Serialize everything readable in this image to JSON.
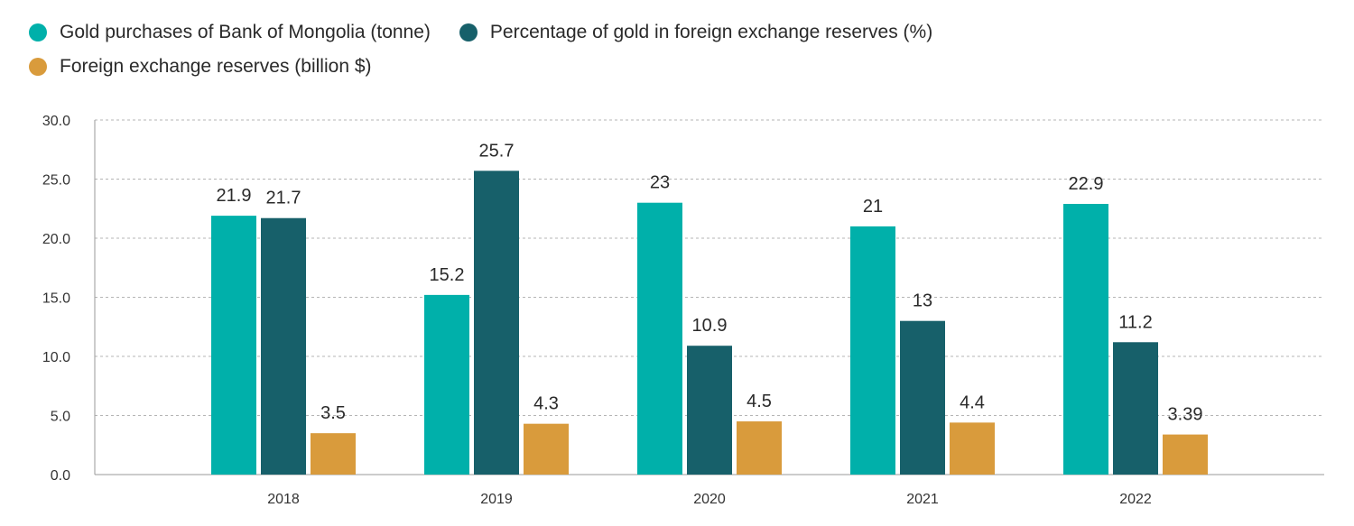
{
  "legend": {
    "items": [
      {
        "label": "Gold purchases of Bank of Mongolia (tonne)",
        "color": "#00b0aa"
      },
      {
        "label": "Percentage of gold in foreign exchange reserves (%)",
        "color": "#17606a"
      },
      {
        "label": "Foreign exchange reserves (billion $)",
        "color": "#d99b3c"
      }
    ]
  },
  "chart_data": {
    "type": "bar",
    "title": "",
    "xlabel": "",
    "ylabel": "",
    "categories": [
      "2018",
      "2019",
      "2020",
      "2021",
      "2022"
    ],
    "ylim": [
      0,
      30
    ],
    "yticks": [
      "0.0",
      "5.0",
      "10.0",
      "15.0",
      "20.0",
      "25.0",
      "30.0"
    ],
    "grid": true,
    "legend_position": "top-left",
    "series": [
      {
        "name": "Gold purchases of Bank of Mongolia (tonne)",
        "color": "#00b0aa",
        "values": [
          21.9,
          15.2,
          23,
          21,
          22.9
        ],
        "labels": [
          "21.9",
          "15.2",
          "23",
          "21",
          "22.9"
        ]
      },
      {
        "name": "Percentage of gold in foreign exchange reserves (%)",
        "color": "#17606a",
        "values": [
          21.7,
          25.7,
          10.9,
          13,
          11.2
        ],
        "labels": [
          "21.7",
          "25.7",
          "10.9",
          "13",
          "11.2"
        ]
      },
      {
        "name": "Foreign exchange reserves (billion $)",
        "color": "#d99b3c",
        "values": [
          3.5,
          4.3,
          4.5,
          4.4,
          3.39
        ],
        "labels": [
          "3.5",
          "4.3",
          "4.5",
          "4.4",
          "3.39"
        ]
      }
    ]
  }
}
